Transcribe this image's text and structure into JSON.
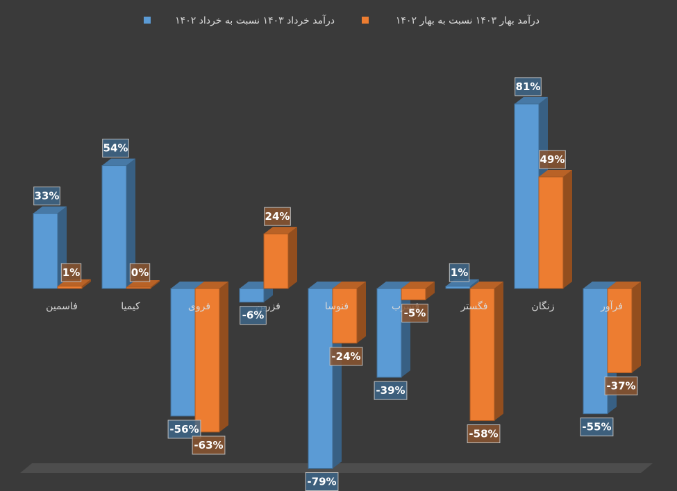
{
  "chart_data": {
    "type": "bar",
    "categories": [
      "فاسمین",
      "کیمیا",
      "فروی",
      "فزرین",
      "فنوسا",
      "فسرب",
      "فگستر",
      "زنگان",
      "فرآور"
    ],
    "series": [
      {
        "name": "درآمد خرداد ۱۴۰۳ نسبت به خرداد ۱۴۰۲",
        "color": "#5b9bd5",
        "values": [
          33,
          54,
          -56,
          -6,
          -79,
          -39,
          1,
          81,
          -55
        ],
        "labels": [
          "33%",
          "54%",
          "-56%",
          "-6%",
          "-79%",
          "-39%",
          "1%",
          "81%",
          "-55%"
        ]
      },
      {
        "name": "درآمد بهار ۱۴۰۳ نسبت به بهار ۱۴۰۲",
        "color": "#ed7d31",
        "values": [
          1,
          0,
          -63,
          24,
          -24,
          -5,
          -58,
          49,
          -37
        ],
        "labels": [
          "1%",
          "0%",
          "-63%",
          "24%",
          "-24%",
          "-5%",
          "-58%",
          "49%",
          "-37%"
        ]
      }
    ],
    "legend_position": "top",
    "grid": false,
    "style": "3d-clustered-column",
    "ylim": [
      -80,
      81
    ]
  }
}
